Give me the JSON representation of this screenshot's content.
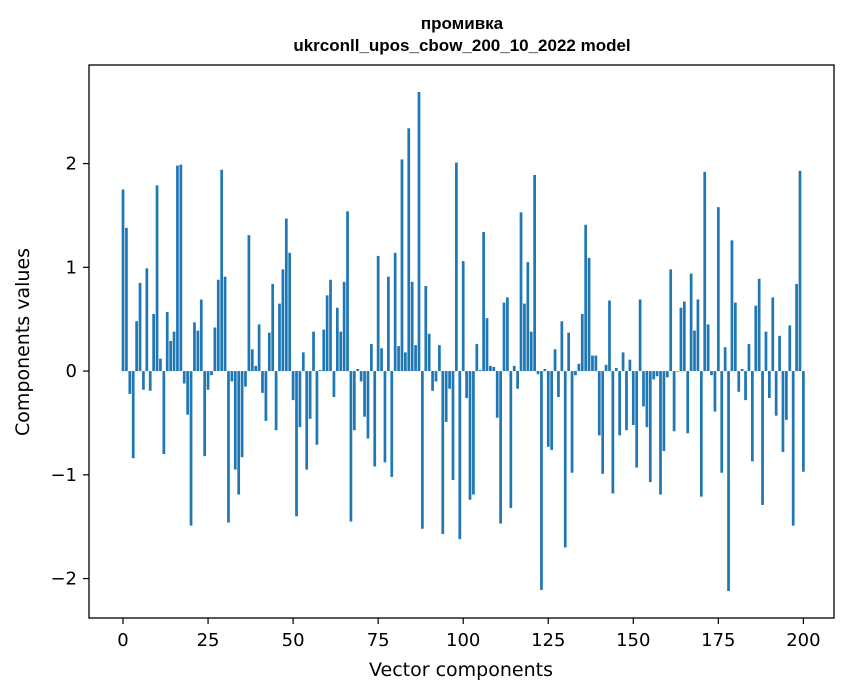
{
  "chart_data": {
    "type": "bar",
    "title": "промивка",
    "subtitle": "ukrconll_upos_cbow_200_10_2022 model",
    "xlabel": "Vector components",
    "ylabel": "Components values",
    "xlim": [
      -10,
      209
    ],
    "ylim": [
      -2.38,
      2.95
    ],
    "xticks": [
      0,
      25,
      50,
      75,
      100,
      125,
      150,
      175,
      200
    ],
    "xtick_labels": [
      "0",
      "25",
      "50",
      "75",
      "100",
      "125",
      "150",
      "175",
      "200"
    ],
    "yticks": [
      -2,
      -1,
      0,
      1,
      2
    ],
    "ytick_labels": [
      "−2",
      "−1",
      "0",
      "1",
      "2"
    ],
    "grid": false,
    "legend": "none",
    "bar_color": "#1f77b4",
    "values": [
      1.75,
      1.38,
      -0.22,
      -0.84,
      0.48,
      0.85,
      -0.18,
      0.99,
      -0.19,
      0.55,
      1.79,
      0.12,
      -0.8,
      0.57,
      0.29,
      0.38,
      1.98,
      1.99,
      -0.12,
      -0.42,
      -1.49,
      0.47,
      0.39,
      0.69,
      -0.82,
      -0.18,
      -0.04,
      0.42,
      0.88,
      1.94,
      0.91,
      -1.46,
      -0.1,
      -0.95,
      -1.19,
      -0.83,
      -0.15,
      1.31,
      0.21,
      0.05,
      0.45,
      -0.21,
      -0.48,
      0.37,
      0.84,
      -0.57,
      0.65,
      0.98,
      1.47,
      1.14,
      -0.28,
      -1.4,
      -0.54,
      0.18,
      -0.95,
      -0.46,
      0.38,
      -0.71,
      0.01,
      0.4,
      0.73,
      0.88,
      -0.25,
      0.61,
      0.38,
      0.86,
      1.54,
      -1.45,
      -0.57,
      0.02,
      -0.1,
      -0.44,
      -0.65,
      0.26,
      -0.92,
      1.11,
      0.22,
      -0.88,
      0.91,
      -1.02,
      1.14,
      0.24,
      2.04,
      0.18,
      2.34,
      0.86,
      0.25,
      2.69,
      -1.52,
      0.82,
      0.36,
      -0.19,
      -0.1,
      0.25,
      -1.57,
      -0.49,
      -0.17,
      -1.05,
      2.01,
      -1.62,
      1.06,
      -0.26,
      -1.24,
      -1.19,
      0.26,
      0.01,
      1.34,
      0.51,
      0.05,
      0.04,
      -0.45,
      -1.47,
      0.66,
      0.71,
      -1.32,
      0.05,
      -0.17,
      1.53,
      0.65,
      1.05,
      0.38,
      1.89,
      -0.03,
      -2.11,
      0.02,
      -0.73,
      -0.76,
      0.21,
      -0.25,
      0.48,
      -1.7,
      0.37,
      -0.98,
      -0.04,
      0.07,
      0.55,
      1.41,
      1.09,
      0.15,
      0.15,
      -0.62,
      -0.99,
      0.06,
      0.68,
      -1.18,
      0.03,
      -0.62,
      0.18,
      -0.57,
      0.11,
      -0.52,
      -0.93,
      0.69,
      -0.34,
      -0.54,
      -1.07,
      -0.08,
      -0.05,
      -1.19,
      -0.77,
      -0.06,
      0.98,
      -0.58,
      0.0,
      0.61,
      0.67,
      -0.6,
      0.94,
      0.39,
      0.69,
      -1.21,
      1.92,
      0.45,
      -0.04,
      -0.39,
      1.58,
      -0.98,
      0.23,
      -2.12,
      1.26,
      0.66,
      -0.2,
      0.02,
      -0.28,
      0.26,
      -0.87,
      0.63,
      0.89,
      -1.29,
      0.38,
      -0.26,
      0.71,
      -0.43,
      0.34,
      -0.78,
      -0.47,
      0.44,
      -1.49,
      0.84,
      1.93,
      -0.97
    ]
  }
}
